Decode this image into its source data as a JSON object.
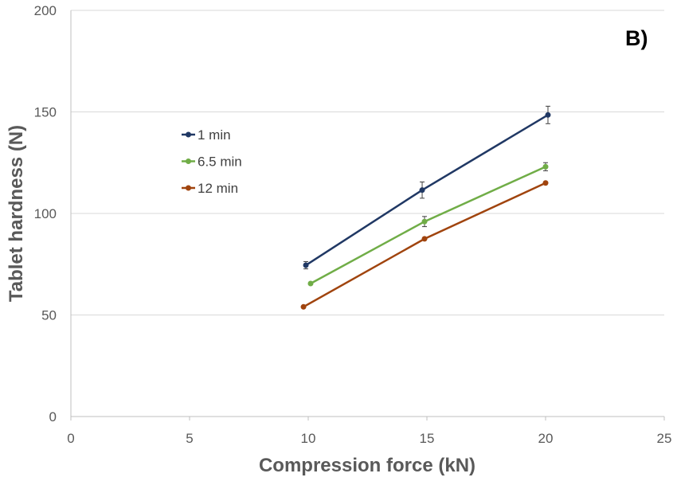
{
  "chart_data": {
    "type": "line",
    "title": "",
    "panel_label": "B)",
    "xlabel": "Compression force (kN)",
    "ylabel": "Tablet hardness (N)",
    "xlim": [
      0,
      25
    ],
    "ylim": [
      0,
      200
    ],
    "x_ticks": [
      0,
      5,
      10,
      15,
      20,
      25
    ],
    "y_ticks": [
      0,
      50,
      100,
      150,
      200
    ],
    "grid": "horizontal",
    "legend_position": "upper-left",
    "series": [
      {
        "name": "1 min",
        "color": "#203864",
        "points": [
          {
            "x": 9.9,
            "y": 74.5,
            "err": 1.8
          },
          {
            "x": 14.8,
            "y": 111.5,
            "err": 4.0
          },
          {
            "x": 20.1,
            "y": 148.5,
            "err": 4.3
          }
        ]
      },
      {
        "name": "6.5 min",
        "color": "#70ad47",
        "points": [
          {
            "x": 10.1,
            "y": 65.5,
            "err": 0
          },
          {
            "x": 14.9,
            "y": 96.0,
            "err": 2.5
          },
          {
            "x": 20.0,
            "y": 123.0,
            "err": 2.0
          }
        ]
      },
      {
        "name": "12 min",
        "color": "#a0440e",
        "points": [
          {
            "x": 9.8,
            "y": 54.0,
            "err": 0
          },
          {
            "x": 14.9,
            "y": 87.5,
            "err": 0
          },
          {
            "x": 20.0,
            "y": 115.0,
            "err": 0
          }
        ]
      }
    ]
  }
}
